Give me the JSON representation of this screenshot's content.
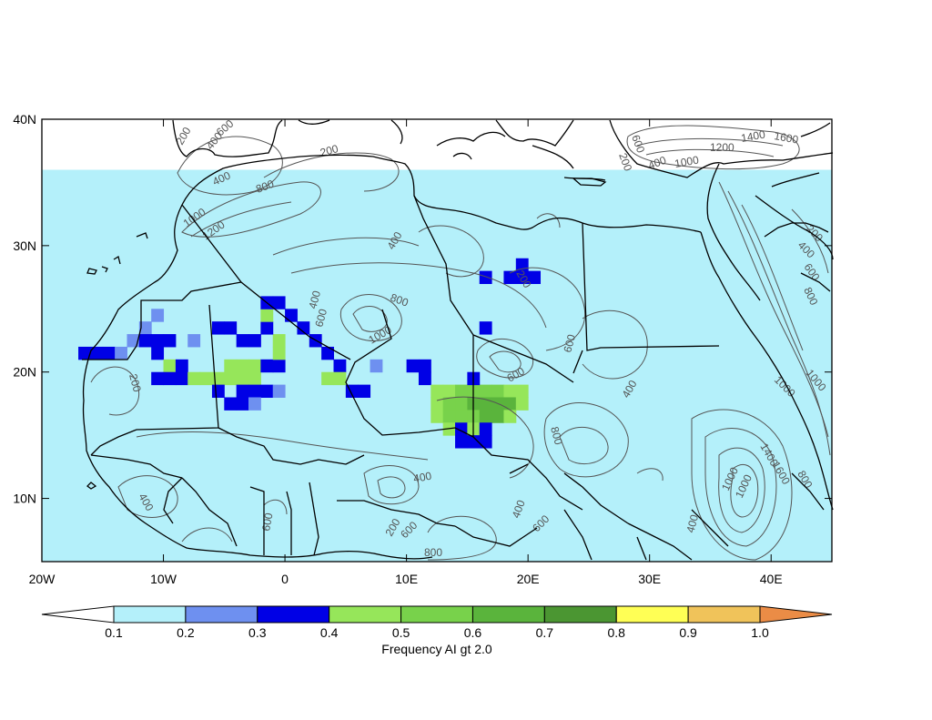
{
  "map": {
    "lon_range": [
      -20,
      45
    ],
    "lat_range": [
      5,
      40
    ],
    "x_ticks": [
      {
        "lon": -20,
        "label": "20W"
      },
      {
        "lon": -10,
        "label": "10W"
      },
      {
        "lon": 0,
        "label": "0"
      },
      {
        "lon": 10,
        "label": "10E"
      },
      {
        "lon": 20,
        "label": "20E"
      },
      {
        "lon": 30,
        "label": "30E"
      },
      {
        "lon": 40,
        "label": "40E"
      }
    ],
    "y_ticks": [
      {
        "lat": 40,
        "label": "40N"
      },
      {
        "lat": 30,
        "label": "30N"
      },
      {
        "lat": 20,
        "label": "20N"
      },
      {
        "lat": 10,
        "label": "10N"
      }
    ],
    "grid_step_deg": 1,
    "cells": [
      {
        "lon": -17,
        "lat": 21,
        "v": 0.35
      },
      {
        "lon": -16,
        "lat": 21,
        "v": 0.35
      },
      {
        "lon": -15,
        "lat": 21,
        "v": 0.35
      },
      {
        "lon": -14,
        "lat": 21,
        "v": 0.25
      },
      {
        "lon": -13,
        "lat": 22,
        "v": 0.25
      },
      {
        "lon": -12,
        "lat": 23,
        "v": 0.25
      },
      {
        "lon": -11,
        "lat": 24,
        "v": 0.25
      },
      {
        "lon": -12,
        "lat": 22,
        "v": 0.35
      },
      {
        "lon": -11,
        "lat": 22,
        "v": 0.35
      },
      {
        "lon": -10,
        "lat": 22,
        "v": 0.35
      },
      {
        "lon": -11,
        "lat": 21,
        "v": 0.35
      },
      {
        "lon": -10,
        "lat": 20,
        "v": 0.45
      },
      {
        "lon": -9,
        "lat": 20,
        "v": 0.35
      },
      {
        "lon": -11,
        "lat": 19,
        "v": 0.35
      },
      {
        "lon": -10,
        "lat": 19,
        "v": 0.35
      },
      {
        "lon": -9,
        "lat": 19,
        "v": 0.35
      },
      {
        "lon": -8,
        "lat": 19,
        "v": 0.45
      },
      {
        "lon": -7,
        "lat": 19,
        "v": 0.45
      },
      {
        "lon": -6,
        "lat": 19,
        "v": 0.45
      },
      {
        "lon": -5,
        "lat": 19,
        "v": 0.45
      },
      {
        "lon": -4,
        "lat": 19,
        "v": 0.45
      },
      {
        "lon": -3,
        "lat": 19,
        "v": 0.45
      },
      {
        "lon": -5,
        "lat": 20,
        "v": 0.45
      },
      {
        "lon": -4,
        "lat": 20,
        "v": 0.45
      },
      {
        "lon": -3,
        "lat": 20,
        "v": 0.45
      },
      {
        "lon": -2,
        "lat": 20,
        "v": 0.35
      },
      {
        "lon": -1,
        "lat": 20,
        "v": 0.35
      },
      {
        "lon": -1,
        "lat": 21,
        "v": 0.45
      },
      {
        "lon": -1,
        "lat": 22,
        "v": 0.45
      },
      {
        "lon": -2,
        "lat": 23,
        "v": 0.35
      },
      {
        "lon": -2,
        "lat": 24,
        "v": 0.45
      },
      {
        "lon": -2,
        "lat": 25,
        "v": 0.35
      },
      {
        "lon": -1,
        "lat": 25,
        "v": 0.35
      },
      {
        "lon": 0,
        "lat": 24,
        "v": 0.35
      },
      {
        "lon": 1,
        "lat": 23,
        "v": 0.35
      },
      {
        "lon": 2,
        "lat": 22,
        "v": 0.35
      },
      {
        "lon": 3,
        "lat": 21,
        "v": 0.35
      },
      {
        "lon": 4,
        "lat": 20,
        "v": 0.35
      },
      {
        "lon": 3,
        "lat": 19,
        "v": 0.45
      },
      {
        "lon": 4,
        "lat": 19,
        "v": 0.45
      },
      {
        "lon": 5,
        "lat": 18,
        "v": 0.35
      },
      {
        "lon": 6,
        "lat": 18,
        "v": 0.35
      },
      {
        "lon": 7,
        "lat": 20,
        "v": 0.25
      },
      {
        "lon": -6,
        "lat": 18,
        "v": 0.35
      },
      {
        "lon": -4,
        "lat": 18,
        "v": 0.35
      },
      {
        "lon": -3,
        "lat": 18,
        "v": 0.35
      },
      {
        "lon": -2,
        "lat": 18,
        "v": 0.35
      },
      {
        "lon": -1,
        "lat": 18,
        "v": 0.25
      },
      {
        "lon": -5,
        "lat": 17,
        "v": 0.35
      },
      {
        "lon": -4,
        "lat": 17,
        "v": 0.35
      },
      {
        "lon": -3,
        "lat": 17,
        "v": 0.25
      },
      {
        "lon": -8,
        "lat": 22,
        "v": 0.25
      },
      {
        "lon": -6,
        "lat": 23,
        "v": 0.35
      },
      {
        "lon": -5,
        "lat": 23,
        "v": 0.35
      },
      {
        "lon": -4,
        "lat": 22,
        "v": 0.35
      },
      {
        "lon": -3,
        "lat": 22,
        "v": 0.35
      },
      {
        "lon": 10,
        "lat": 20,
        "v": 0.35
      },
      {
        "lon": 11,
        "lat": 20,
        "v": 0.35
      },
      {
        "lon": 11,
        "lat": 19,
        "v": 0.35
      },
      {
        "lon": 12,
        "lat": 18,
        "v": 0.45
      },
      {
        "lon": 13,
        "lat": 18,
        "v": 0.45
      },
      {
        "lon": 14,
        "lat": 18,
        "v": 0.55
      },
      {
        "lon": 15,
        "lat": 18,
        "v": 0.55
      },
      {
        "lon": 16,
        "lat": 18,
        "v": 0.55
      },
      {
        "lon": 17,
        "lat": 18,
        "v": 0.55
      },
      {
        "lon": 18,
        "lat": 18,
        "v": 0.45
      },
      {
        "lon": 19,
        "lat": 18,
        "v": 0.45
      },
      {
        "lon": 12,
        "lat": 17,
        "v": 0.45
      },
      {
        "lon": 13,
        "lat": 17,
        "v": 0.55
      },
      {
        "lon": 14,
        "lat": 17,
        "v": 0.55
      },
      {
        "lon": 15,
        "lat": 17,
        "v": 0.65
      },
      {
        "lon": 16,
        "lat": 17,
        "v": 0.65
      },
      {
        "lon": 17,
        "lat": 17,
        "v": 0.65
      },
      {
        "lon": 18,
        "lat": 17,
        "v": 0.65
      },
      {
        "lon": 19,
        "lat": 17,
        "v": 0.45
      },
      {
        "lon": 12,
        "lat": 16,
        "v": 0.45
      },
      {
        "lon": 13,
        "lat": 16,
        "v": 0.55
      },
      {
        "lon": 14,
        "lat": 16,
        "v": 0.55
      },
      {
        "lon": 15,
        "lat": 16,
        "v": 0.55
      },
      {
        "lon": 16,
        "lat": 16,
        "v": 0.65
      },
      {
        "lon": 17,
        "lat": 16,
        "v": 0.65
      },
      {
        "lon": 18,
        "lat": 16,
        "v": 0.45
      },
      {
        "lon": 13,
        "lat": 15,
        "v": 0.45
      },
      {
        "lon": 14,
        "lat": 15,
        "v": 0.35
      },
      {
        "lon": 15,
        "lat": 15,
        "v": 0.45
      },
      {
        "lon": 16,
        "lat": 15,
        "v": 0.35
      },
      {
        "lon": 14,
        "lat": 14,
        "v": 0.35
      },
      {
        "lon": 15,
        "lat": 14,
        "v": 0.35
      },
      {
        "lon": 16,
        "lat": 14,
        "v": 0.35
      },
      {
        "lon": 15,
        "lat": 19,
        "v": 0.35
      },
      {
        "lon": 16,
        "lat": 27,
        "v": 0.35
      },
      {
        "lon": 18,
        "lat": 27,
        "v": 0.35
      },
      {
        "lon": 19,
        "lat": 27,
        "v": 0.35
      },
      {
        "lon": 20,
        "lat": 27,
        "v": 0.35
      },
      {
        "lon": 19,
        "lat": 28,
        "v": 0.35
      },
      {
        "lon": 16,
        "lat": 23,
        "v": 0.35
      }
    ],
    "background_band": {
      "v": 0.15,
      "lon_min": -20,
      "lon_max": 45,
      "lat_min": 5,
      "lat_max": 36
    }
  },
  "colorbar": {
    "levels": [
      "0.1",
      "0.2",
      "0.3",
      "0.4",
      "0.5",
      "0.6",
      "0.7",
      "0.8",
      "0.9",
      "1.0"
    ],
    "colors": [
      "#ffffff",
      "#b4f0fa",
      "#6e90f0",
      "#0000e6",
      "#96e65a",
      "#78d24b",
      "#5ab43c",
      "#4b9632",
      "#ffff55",
      "#f0c35a",
      "#eb8c46"
    ],
    "title": "Frequency AI gt 2.0"
  },
  "contour_labels": [
    "200",
    "400",
    "600",
    "800",
    "1000",
    "1200",
    "1400",
    "1600"
  ]
}
